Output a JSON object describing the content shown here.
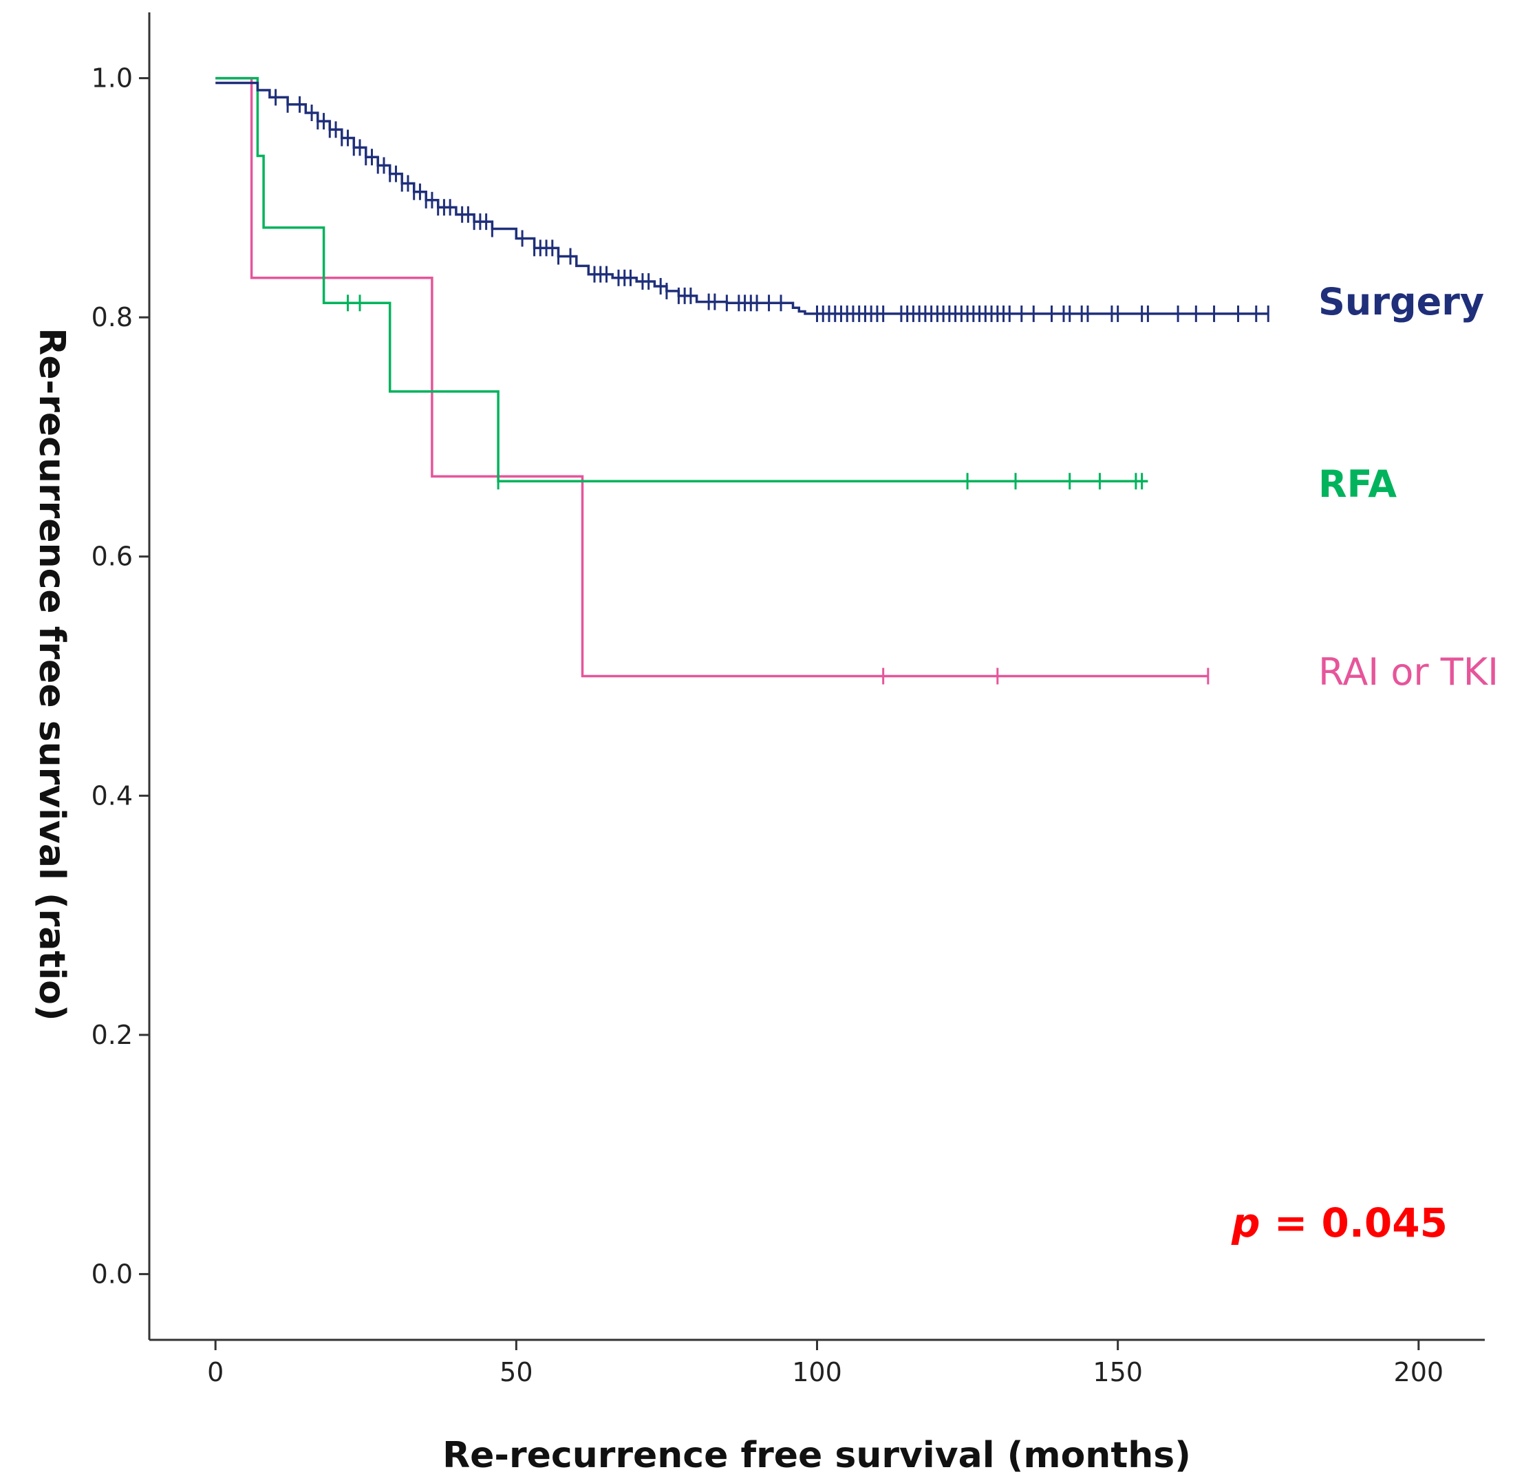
{
  "chart_data": {
    "type": "line",
    "subtype": "kaplan-meier",
    "title": "",
    "xlabel": "Re-recurrence free survival (months)",
    "ylabel": "Re-recurrence free survival (ratio)",
    "xlim": [
      -11,
      211
    ],
    "ylim": [
      -0.055,
      1.055
    ],
    "x_ticks": [
      0,
      50,
      100,
      150,
      200
    ],
    "x_tick_labels": [
      "0",
      "50",
      "100",
      "150",
      "200"
    ],
    "y_ticks": [
      0.0,
      0.2,
      0.4,
      0.6,
      0.8,
      1.0
    ],
    "y_tick_labels": [
      "0.0",
      "0.2",
      "0.4",
      "0.6",
      "0.8",
      "1.0"
    ],
    "grid": false,
    "series": [
      {
        "name": "Surgery",
        "label": "Surgery",
        "color": "#1f2f7a",
        "steps": [
          [
            0,
            0.996
          ],
          [
            7,
            0.99
          ],
          [
            9,
            0.984
          ],
          [
            12,
            0.978
          ],
          [
            15,
            0.971
          ],
          [
            17,
            0.964
          ],
          [
            19,
            0.957
          ],
          [
            21,
            0.95
          ],
          [
            23,
            0.942
          ],
          [
            25,
            0.934
          ],
          [
            27,
            0.927
          ],
          [
            29,
            0.92
          ],
          [
            31,
            0.912
          ],
          [
            33,
            0.905
          ],
          [
            35,
            0.898
          ],
          [
            37,
            0.892
          ],
          [
            40,
            0.886
          ],
          [
            43,
            0.88
          ],
          [
            46,
            0.874
          ],
          [
            50,
            0.866
          ],
          [
            53,
            0.858
          ],
          [
            57,
            0.851
          ],
          [
            60,
            0.843
          ],
          [
            62,
            0.836
          ],
          [
            66,
            0.833
          ],
          [
            70,
            0.83
          ],
          [
            73,
            0.826
          ],
          [
            75,
            0.822
          ],
          [
            77,
            0.818
          ],
          [
            80,
            0.813
          ],
          [
            85,
            0.812
          ],
          [
            96,
            0.808
          ],
          [
            97,
            0.805
          ],
          [
            98,
            0.803
          ],
          [
            175,
            0.803
          ]
        ],
        "censor_x": [
          10,
          12,
          14,
          16,
          17,
          18,
          19,
          20,
          21,
          22,
          23,
          24,
          25,
          26,
          27,
          28,
          29,
          30,
          31,
          32,
          33,
          34,
          35,
          36,
          37,
          38,
          39,
          41,
          42,
          43,
          44,
          45,
          46,
          51,
          53,
          54,
          55,
          56,
          57,
          59,
          63,
          64,
          65,
          67,
          68,
          69,
          71,
          72,
          74,
          75,
          77,
          78,
          79,
          82,
          83,
          85,
          87,
          88,
          89,
          90,
          92,
          94,
          100,
          101,
          102,
          103,
          104,
          105,
          106,
          107,
          108,
          109,
          110,
          111,
          114,
          115,
          116,
          117,
          118,
          119,
          120,
          121,
          122,
          123,
          124,
          125,
          126,
          127,
          128,
          129,
          130,
          131,
          132,
          134,
          136,
          139,
          141,
          142,
          144,
          145,
          149,
          150,
          154,
          155,
          160,
          163,
          166,
          170,
          173,
          175
        ]
      },
      {
        "name": "RFA",
        "label": "RFA",
        "color": "#00b35c",
        "steps": [
          [
            0,
            1.0
          ],
          [
            7,
            0.935
          ],
          [
            8,
            0.875
          ],
          [
            18,
            0.812
          ],
          [
            29,
            0.738
          ],
          [
            47,
            0.663
          ],
          [
            155,
            0.663
          ]
        ],
        "censor_x": [
          22,
          24,
          47,
          125,
          133,
          142,
          147,
          153,
          154
        ]
      },
      {
        "name": "RAI or TKI",
        "label": "RAI or TKI",
        "color": "#e6559a",
        "steps": [
          [
            0,
            1.0
          ],
          [
            6,
            0.833
          ],
          [
            36,
            0.667
          ],
          [
            61,
            0.5
          ],
          [
            165,
            0.5
          ]
        ],
        "censor_x": [
          111,
          130,
          165
        ]
      }
    ],
    "annotation": {
      "p_symbol": "p",
      "p_rest": " = 0.045",
      "color": "#ff0000"
    }
  }
}
